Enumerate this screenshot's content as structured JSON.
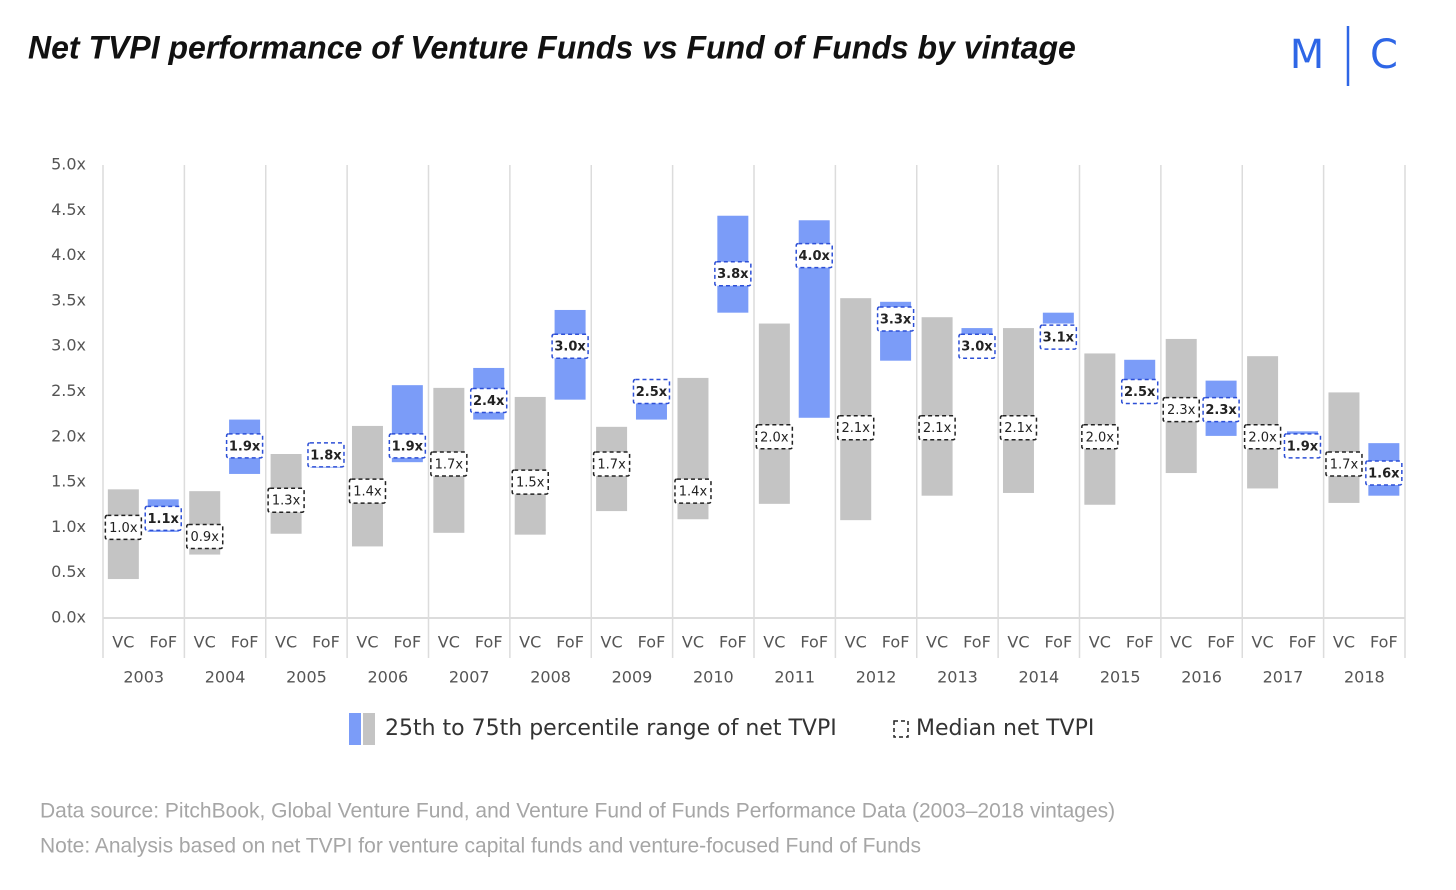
{
  "chart_data": {
    "type": "range-bar",
    "title": "Net TVPI performance of Venture Funds vs Fund of Funds by vintage",
    "logo": [
      "M",
      "C"
    ],
    "categories": [
      "2003",
      "2004",
      "2005",
      "2006",
      "2007",
      "2008",
      "2009",
      "2010",
      "2011",
      "2012",
      "2013",
      "2014",
      "2015",
      "2016",
      "2017",
      "2018"
    ],
    "series": [
      {
        "name": "VC",
        "color": "#c4c4c4",
        "border": "#222222",
        "low": [
          0.43,
          0.7,
          0.93,
          0.79,
          0.94,
          0.92,
          1.18,
          1.09,
          1.26,
          1.08,
          1.35,
          1.38,
          1.25,
          1.6,
          1.43,
          1.27
        ],
        "high": [
          1.42,
          1.4,
          1.81,
          2.12,
          2.54,
          2.44,
          2.11,
          2.65,
          3.25,
          3.53,
          3.32,
          3.2,
          2.92,
          3.08,
          2.89,
          2.49
        ],
        "values": [
          1.0,
          0.9,
          1.3,
          1.4,
          1.7,
          1.5,
          1.7,
          1.4,
          2.0,
          2.1,
          2.1,
          2.1,
          2.0,
          2.3,
          2.0,
          1.7
        ],
        "value_labels": [
          "1.0x",
          "0.9x",
          "1.3x",
          "1.4x",
          "1.7x",
          "1.5x",
          "1.7x",
          "1.4x",
          "2.0x",
          "2.1x",
          "2.1x",
          "2.1x",
          "2.0x",
          "2.3x",
          "2.0x",
          "1.7x"
        ]
      },
      {
        "name": "FoF",
        "color": "#7b9cf8",
        "border": "#2c4fd6",
        "low": [
          0.95,
          1.59,
          1.66,
          1.72,
          2.19,
          2.41,
          2.19,
          3.37,
          2.21,
          2.84,
          3.05,
          3.25,
          2.6,
          2.01,
          1.96,
          1.35
        ],
        "high": [
          1.31,
          2.19,
          1.85,
          2.57,
          2.76,
          3.4,
          2.45,
          4.44,
          4.39,
          3.49,
          3.2,
          3.37,
          2.85,
          2.62,
          2.06,
          1.93
        ],
        "values": [
          1.1,
          1.9,
          1.8,
          1.9,
          2.4,
          3.0,
          2.5,
          3.8,
          4.0,
          3.3,
          3.0,
          3.1,
          2.5,
          2.3,
          1.9,
          1.6
        ],
        "value_labels": [
          "1.1x",
          "1.9x",
          "1.8x",
          "1.9x",
          "2.4x",
          "3.0x",
          "2.5x",
          "3.8x",
          "4.0x",
          "3.3x",
          "3.0x",
          "3.1x",
          "2.5x",
          "2.3x",
          "1.9x",
          "1.6x"
        ]
      }
    ],
    "ylim": [
      0,
      5
    ],
    "yticks": [
      {
        "value": 0,
        "label": "0.0x"
      },
      {
        "value": 0.5,
        "label": "0.5x"
      },
      {
        "value": 1,
        "label": "1.0x"
      },
      {
        "value": 1.5,
        "label": "1.5x"
      },
      {
        "value": 2,
        "label": "2.0x"
      },
      {
        "value": 2.5,
        "label": "2.5x"
      },
      {
        "value": 3,
        "label": "3.0x"
      },
      {
        "value": 3.5,
        "label": "3.5x"
      },
      {
        "value": 4,
        "label": "4.0x"
      },
      {
        "value": 4.5,
        "label": "4.5x"
      },
      {
        "value": 5,
        "label": "5.0x"
      }
    ],
    "legend": [
      "25th to 75th percentile range of net TVPI",
      "Median net TVPI"
    ],
    "source": "Data source: PitchBook, Global Venture Fund, and Venture Fund of Funds Performance Data (2003–2018 vintages)",
    "note": "Note: Analysis based on net TVPI for venture capital funds and venture-focused Fund of Funds"
  }
}
